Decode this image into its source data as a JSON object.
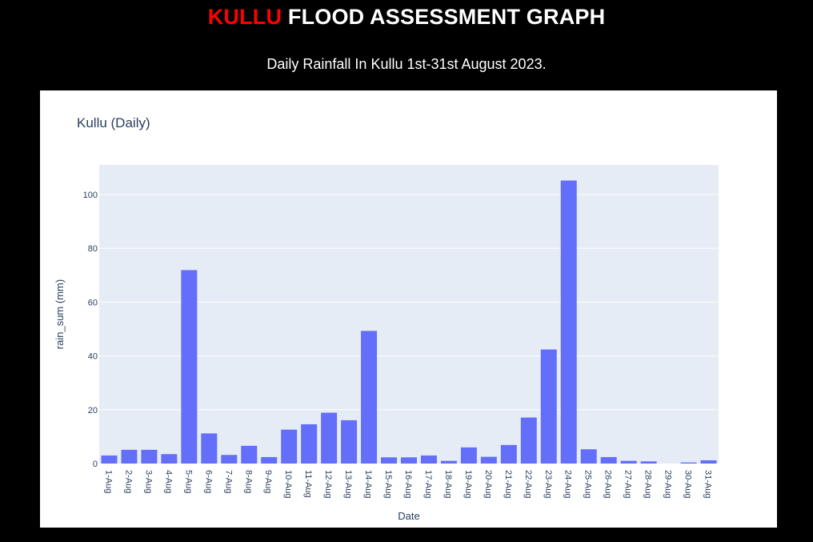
{
  "header": {
    "title_accent": "KULLU",
    "title_rest": " FLOOD ASSESSMENT GRAPH",
    "subtitle": "Daily Rainfall In Kullu 1st-31st August 2023."
  },
  "colors": {
    "page_background": "#000000",
    "title_accent": "#ff0000",
    "title_text": "#ffffff",
    "card_background": "#ffffff",
    "plot_background": "#e5ecf6",
    "bar": "#636efa",
    "axis_text": "#2a3f5f",
    "grid": "#ffffff"
  },
  "chart_data": {
    "type": "bar",
    "title": "Kullu (Daily)",
    "xlabel": "Date",
    "ylabel": "rain_sum (mm)",
    "ylim": [
      0,
      111
    ],
    "yticks": [
      0,
      20,
      40,
      60,
      80,
      100
    ],
    "grid": true,
    "categories": [
      "1-Aug",
      "2-Aug",
      "3-Aug",
      "4-Aug",
      "5-Aug",
      "6-Aug",
      "7-Aug",
      "8-Aug",
      "9-Aug",
      "10-Aug",
      "11-Aug",
      "12-Aug",
      "13-Aug",
      "14-Aug",
      "15-Aug",
      "16-Aug",
      "17-Aug",
      "18-Aug",
      "19-Aug",
      "20-Aug",
      "21-Aug",
      "22-Aug",
      "23-Aug",
      "24-Aug",
      "25-Aug",
      "26-Aug",
      "27-Aug",
      "28-Aug",
      "29-Aug",
      "30-Aug",
      "31-Aug"
    ],
    "values": [
      3.0,
      5.1,
      5.1,
      3.5,
      71.9,
      11.2,
      3.2,
      6.6,
      2.4,
      12.6,
      14.6,
      18.9,
      16.1,
      49.3,
      2.3,
      2.3,
      3.0,
      1.0,
      6.0,
      2.5,
      6.9,
      17.1,
      42.4,
      105.2,
      5.3,
      2.4,
      1.0,
      0.8,
      0.0,
      0.4,
      1.2
    ]
  }
}
